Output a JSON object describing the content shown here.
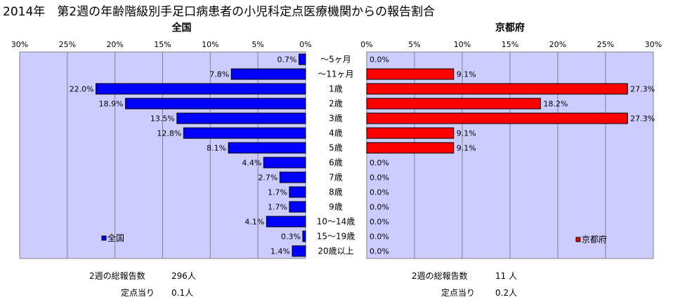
{
  "title": "2014年　第2週の年齢階級別手足口病患者の小児科定点医療機関からの報告割合",
  "chart_data": {
    "type": "bar",
    "orientation": "horizontal",
    "categories": [
      "～5ヶ月",
      "～11ヶ月",
      "1歳",
      "2歳",
      "3歳",
      "4歳",
      "5歳",
      "6歳",
      "7歳",
      "8歳",
      "9歳",
      "10～14歳",
      "15～19歳",
      "20歳以上"
    ],
    "series": [
      {
        "name": "全国",
        "values": [
          0.7,
          7.8,
          22.0,
          18.9,
          13.5,
          12.8,
          8.1,
          4.4,
          2.7,
          1.7,
          1.7,
          4.1,
          0.3,
          1.4
        ],
        "color": "#0000ff",
        "direction": "left"
      },
      {
        "name": "京都府",
        "values": [
          0.0,
          9.1,
          27.3,
          18.2,
          27.3,
          9.1,
          9.1,
          0.0,
          0.0,
          0.0,
          0.0,
          0.0,
          0.0,
          0.0
        ],
        "color": "#ff0000",
        "direction": "right"
      }
    ],
    "value_labels": {
      "全国": [
        "0.7%",
        "7.8%",
        "22.0%",
        "18.9%",
        "13.5%",
        "12.8%",
        "8.1%",
        "4.4%",
        "2.7%",
        "1.7%",
        "1.7%",
        "4.1%",
        "0.3%",
        "1.4%"
      ],
      "京都府": [
        "0.0%",
        "9.1%",
        "27.3%",
        "18.2%",
        "27.3%",
        "9.1%",
        "9.1%",
        "0.0%",
        "0.0%",
        "0.0%",
        "0.0%",
        "0.0%",
        "0.0%",
        "0.0%"
      ]
    },
    "xlim": [
      0,
      30
    ],
    "xticks": [
      0,
      5,
      10,
      15,
      20,
      25,
      30
    ],
    "xtick_labels": [
      "0%",
      "5%",
      "10%",
      "15%",
      "20%",
      "25%",
      "30%"
    ],
    "panel_titles": [
      "全国",
      "京都府"
    ],
    "legend": [
      "全国",
      "京都府"
    ],
    "legend_placement": "bottom-left of each panel",
    "grid": true,
    "plot_background": "#ccccff"
  },
  "footer": {
    "left_total_label": "2週の総報告数",
    "left_total_value": "296人",
    "left_per_label": "定点当り",
    "left_per_value": "0.1人",
    "right_total_label": "2週の総報告数",
    "right_total_value": "11 人",
    "right_per_label": "定点当り",
    "right_per_value": "0.2人"
  }
}
